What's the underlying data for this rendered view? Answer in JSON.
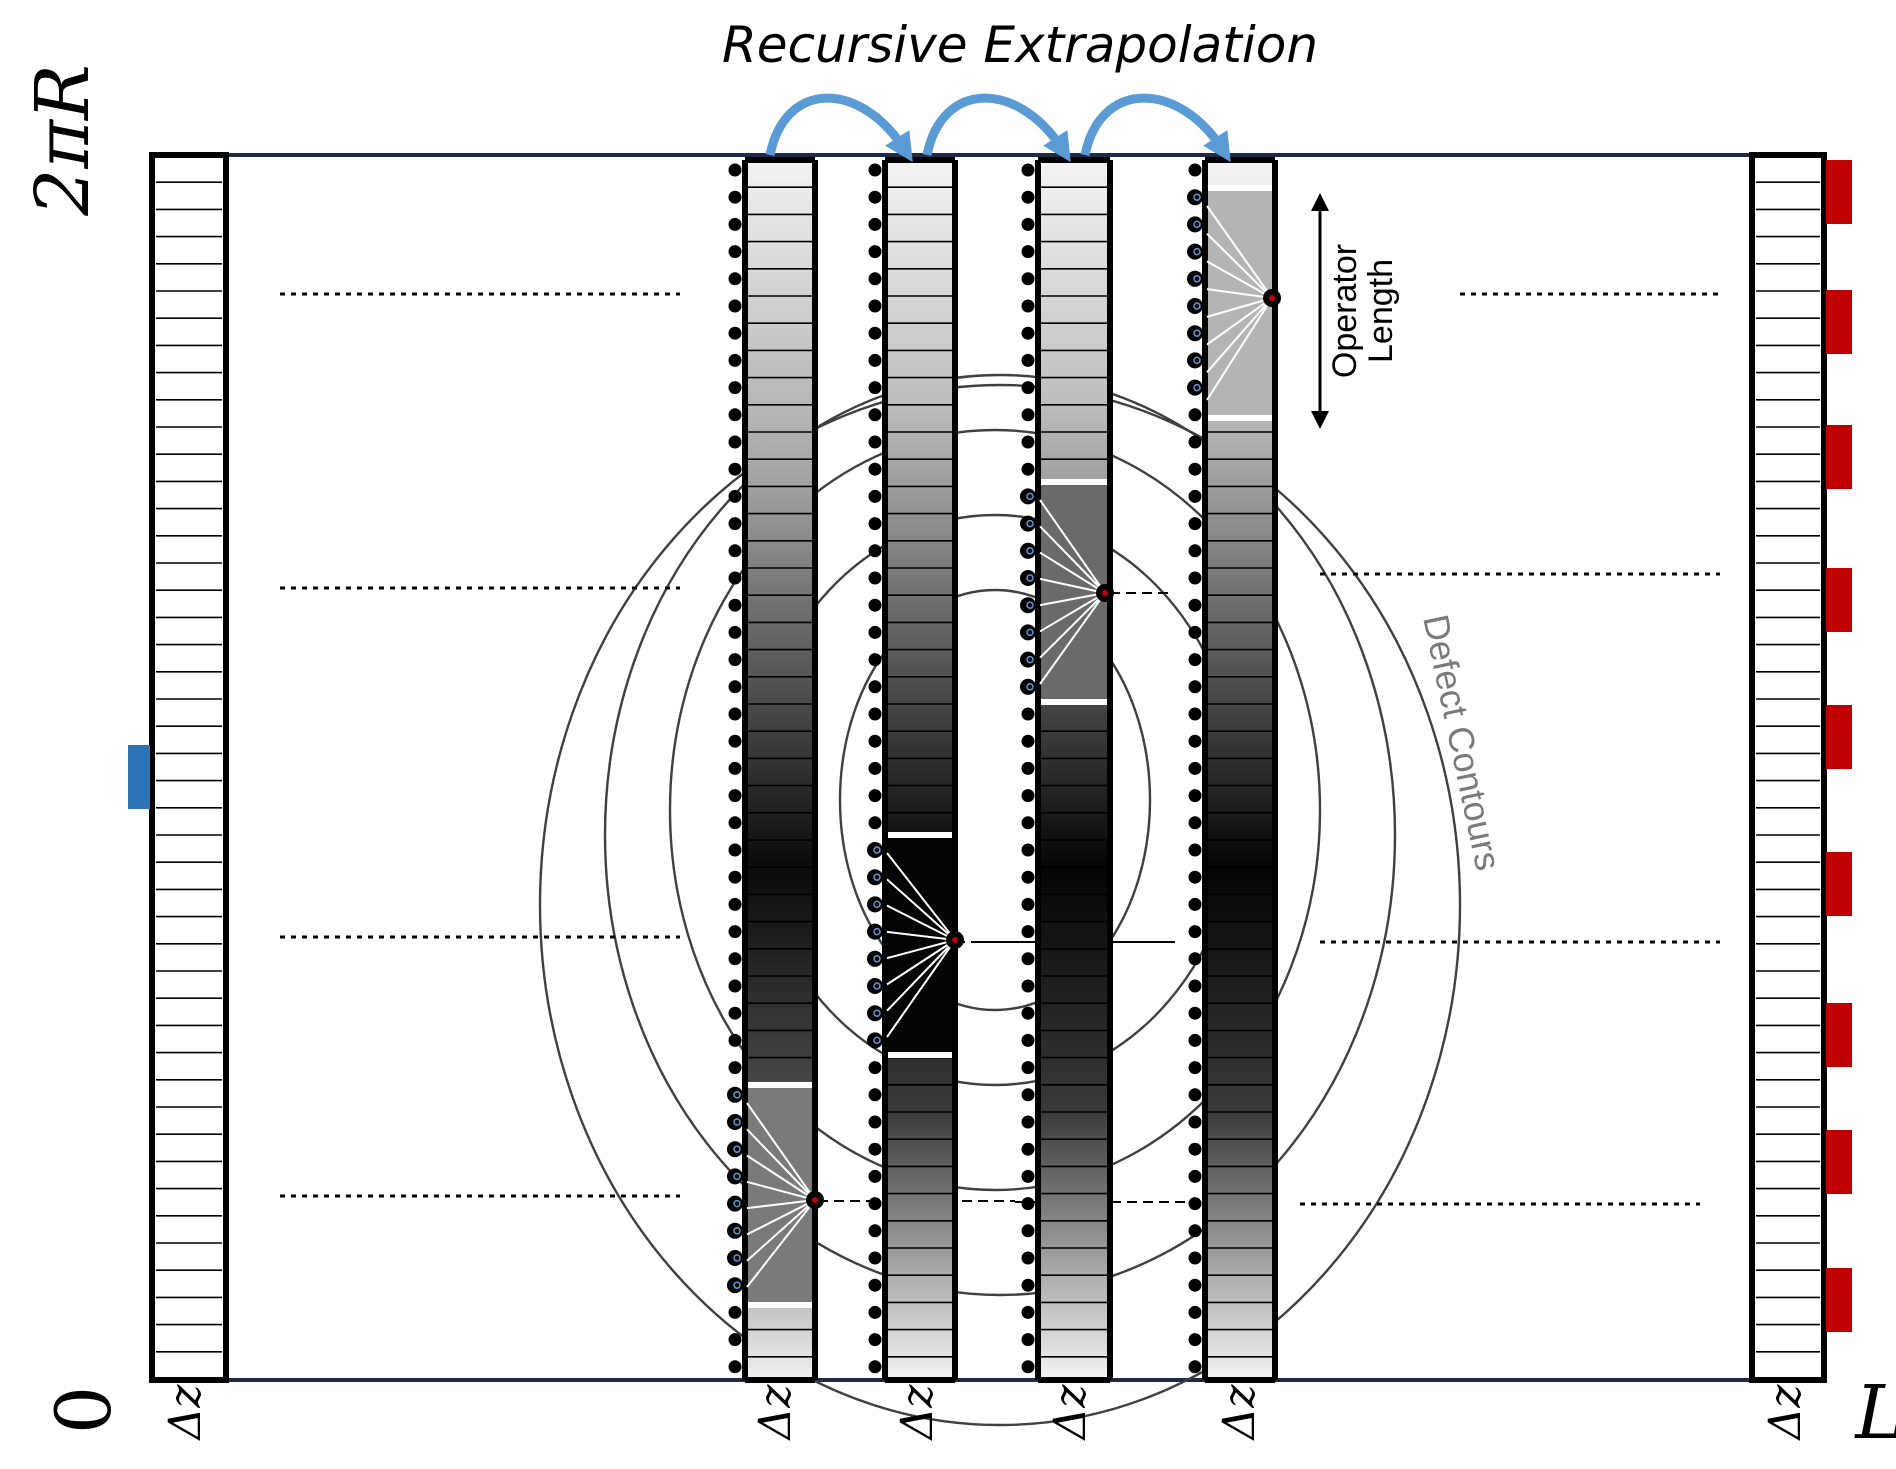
{
  "title": "Recursive Extrapolation",
  "axis": {
    "top_label": "2πR",
    "bottom_label": "0",
    "right_label": "L"
  },
  "slice_label": "Δz",
  "annotations": {
    "operator_length_line1": "Operator",
    "operator_length_line2": "Length",
    "defect_contours": "Defect Contours"
  },
  "colors": {
    "arrow": "#5b9bd5",
    "source_marker": "#2e75b6",
    "receiver_marker": "#c00000",
    "frame_line": "#1f2a44",
    "contour": "#404040"
  }
}
